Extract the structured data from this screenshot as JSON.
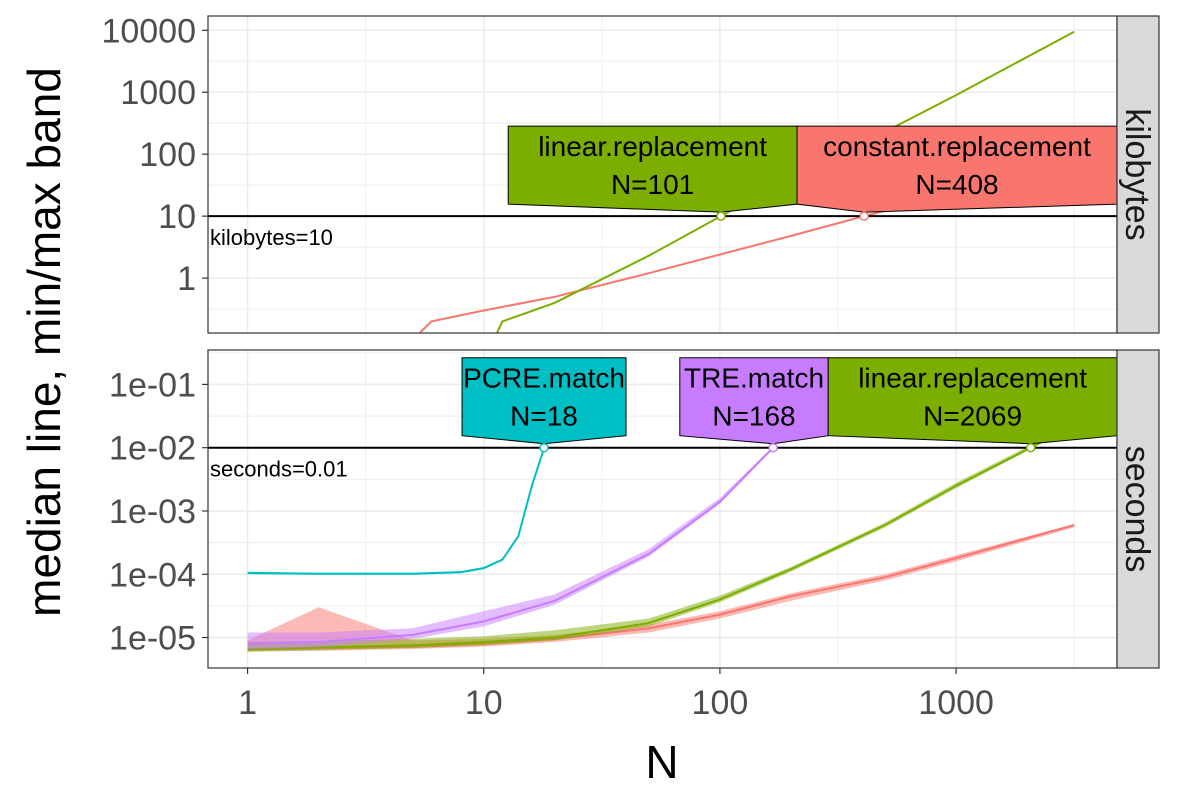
{
  "chart_data": {
    "type": "line",
    "xlabel": "N",
    "ylabel": "median line, min/max band",
    "x_scale": "log10",
    "y_scale": "log10",
    "xlim": [
      0.68,
      4800
    ],
    "x_ticks": [
      {
        "value": 1,
        "label": "1"
      },
      {
        "value": 10,
        "label": "10"
      },
      {
        "value": 100,
        "label": "100"
      },
      {
        "value": 1000,
        "label": "1000"
      }
    ],
    "grid": true,
    "legend": "none",
    "colors": {
      "constant.replacement": "#F8766D",
      "linear.replacement": "#7CAE00",
      "PCRE.match": "#00BFC4",
      "TRE.match": "#C77CFF"
    },
    "panels": [
      {
        "strip": "kilobytes",
        "ylim": [
          0.13,
          17000
        ],
        "y_ticks": [
          {
            "value": 1,
            "label": "1"
          },
          {
            "value": 10,
            "label": "10"
          },
          {
            "value": 100,
            "label": "100"
          },
          {
            "value": 1000,
            "label": "1000"
          },
          {
            "value": 10000,
            "label": "10000"
          }
        ],
        "hline": {
          "value": 10,
          "label": "kilobytes=10"
        },
        "series": [
          {
            "name": "constant.replacement",
            "x": [
              1,
              2,
              3,
              5,
              6,
              10,
              20,
              50,
              100,
              200,
              408,
              1000,
              3162
            ],
            "y": [
              0.02,
              0.03,
              0.05,
              0.1,
              0.2,
              0.3,
              0.5,
              1.2,
              2.4,
              4.8,
              10,
              24,
              80
            ]
          },
          {
            "name": "linear.replacement",
            "x": [
              1,
              5,
              10,
              11,
              12,
              20,
              50,
              101,
              200,
              500,
              1000,
              3162
            ],
            "y": [
              0.01,
              0.03,
              0.06,
              0.1,
              0.2,
              0.4,
              2.3,
              10,
              40,
              230,
              900,
              9500
            ]
          }
        ],
        "labels": [
          {
            "series": "linear.replacement",
            "name": "linear.replacement",
            "text": "N=101",
            "x": 101,
            "y": 10
          },
          {
            "series": "constant.replacement",
            "name": "constant.replacement",
            "text": "N=408",
            "x": 408,
            "y": 10
          }
        ]
      },
      {
        "strip": "seconds",
        "ylim": [
          3.3e-06,
          0.35
        ],
        "y_ticks": [
          {
            "value": 1e-05,
            "label": "1e-05"
          },
          {
            "value": 0.0001,
            "label": "1e-04"
          },
          {
            "value": 0.001,
            "label": "1e-03"
          },
          {
            "value": 0.01,
            "label": "1e-02"
          },
          {
            "value": 0.1,
            "label": "1e-01"
          }
        ],
        "hline": {
          "value": 0.01,
          "label": "seconds=0.01"
        },
        "series": [
          {
            "name": "constant.replacement",
            "x": [
              1,
              2,
              5,
              10,
              20,
              50,
              100,
              200,
              500,
              1000,
              3162
            ],
            "y": [
              6.5e-06,
              6.8e-06,
              7.2e-06,
              8e-06,
              9.5e-06,
              1.4e-05,
              2.3e-05,
              4.5e-05,
              9e-05,
              0.00018,
              0.0006
            ],
            "min": [
              6e-06,
              6.2e-06,
              6.6e-06,
              7.2e-06,
              8.5e-06,
              1.2e-05,
              2e-05,
              3.8e-05,
              8e-05,
              0.00016,
              0.00055
            ],
            "max": [
              9e-06,
              3e-05,
              9e-06,
              9.5e-06,
              1.1e-05,
              1.6e-05,
              2.6e-05,
              5e-05,
              0.0001,
              0.0002,
              0.00062
            ]
          },
          {
            "name": "linear.replacement",
            "x": [
              1,
              2,
              5,
              10,
              20,
              50,
              100,
              200,
              500,
              1000,
              2069,
              3162
            ],
            "y": [
              6.5e-06,
              7e-06,
              7.5e-06,
              8.5e-06,
              1e-05,
              1.7e-05,
              4e-05,
              0.00012,
              0.0006,
              0.0025,
              0.01,
              0.023
            ],
            "min": [
              6e-06,
              6.3e-06,
              6.8e-06,
              7.5e-06,
              9e-06,
              1.5e-05,
              3.6e-05,
              0.00011,
              0.00055,
              0.0023,
              0.0095,
              0.022
            ],
            "max": [
              8.5e-06,
              8.8e-06,
              9.5e-06,
              1.05e-05,
              1.3e-05,
              2e-05,
              4.6e-05,
              0.00013,
              0.00065,
              0.0028,
              0.011,
              0.024
            ]
          },
          {
            "name": "PCRE.match",
            "x": [
              1,
              2,
              5,
              8,
              10,
              12,
              14,
              16,
              18
            ],
            "y": [
              0.000105,
              0.000102,
              0.000102,
              0.000108,
              0.000125,
              0.00017,
              0.0004,
              0.0025,
              0.0098
            ],
            "min": [
              0.0001,
              9.8e-05,
              9.8e-05,
              0.000103,
              0.00012,
              0.000165,
              0.00038,
              0.0024,
              0.0095
            ],
            "max": [
              0.00011,
              0.000106,
              0.000106,
              0.000112,
              0.00013,
              0.000175,
              0.00042,
              0.0026,
              0.01
            ]
          },
          {
            "name": "TRE.match",
            "x": [
              1,
              2,
              5,
              10,
              20,
              50,
              100,
              168
            ],
            "y": [
              8e-06,
              8.5e-06,
              1.1e-05,
              1.8e-05,
              3.8e-05,
              0.00021,
              0.0014,
              0.01
            ],
            "min": [
              6.5e-06,
              7e-06,
              9.5e-06,
              1.5e-05,
              3.3e-05,
              0.00019,
              0.0013,
              0.0095
            ],
            "max": [
              1.2e-05,
              1.2e-05,
              1.4e-05,
              2.6e-05,
              4.8e-05,
              0.00025,
              0.0016,
              0.0105
            ]
          }
        ],
        "labels": [
          {
            "series": "PCRE.match",
            "name": "PCRE.match",
            "text": "N=18",
            "x": 18,
            "y": 0.01
          },
          {
            "series": "TRE.match",
            "name": "TRE.match",
            "text": "N=168",
            "x": 168,
            "y": 0.01
          },
          {
            "series": "linear.replacement",
            "name": "linear.replacement",
            "text": "N=2069",
            "x": 2069,
            "y": 0.01
          }
        ]
      }
    ]
  }
}
